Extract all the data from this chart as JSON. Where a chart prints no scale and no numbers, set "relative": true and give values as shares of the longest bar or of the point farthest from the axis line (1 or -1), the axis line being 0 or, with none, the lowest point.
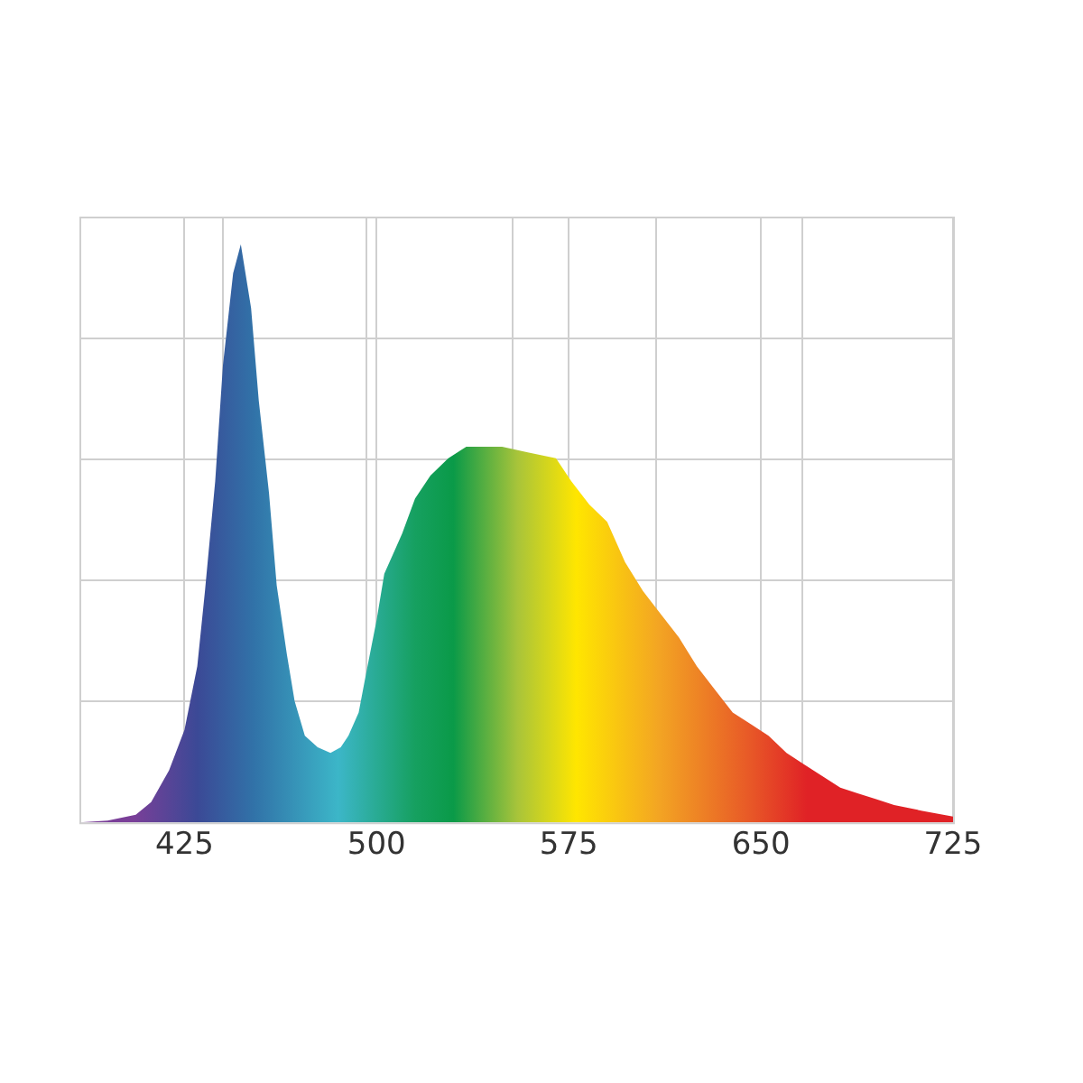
{
  "chart_data": {
    "type": "area",
    "relative": true,
    "grid": true,
    "x": [
      384,
      395,
      406,
      412,
      419,
      425,
      430,
      433,
      437,
      440,
      444,
      447,
      451,
      454,
      458,
      461,
      465,
      468,
      472,
      477,
      482,
      486,
      489,
      493,
      496,
      500,
      503,
      507,
      510,
      515,
      521,
      528,
      535,
      549,
      559,
      570,
      576,
      583,
      590,
      597,
      604,
      611,
      618,
      625,
      632,
      639,
      646,
      653,
      660,
      667,
      674,
      681,
      688,
      695,
      702,
      713,
      725
    ],
    "values": [
      0,
      0.003,
      0.013,
      0.035,
      0.09,
      0.16,
      0.27,
      0.4,
      0.59,
      0.79,
      0.95,
      1,
      0.89,
      0.73,
      0.57,
      0.41,
      0.29,
      0.21,
      0.15,
      0.13,
      0.12,
      0.13,
      0.15,
      0.19,
      0.26,
      0.35,
      0.43,
      0.47,
      0.5,
      0.56,
      0.6,
      0.63,
      0.65,
      0.65,
      0.64,
      0.63,
      0.59,
      0.55,
      0.52,
      0.45,
      0.4,
      0.36,
      0.32,
      0.27,
      0.23,
      0.19,
      0.17,
      0.15,
      0.12,
      0.1,
      0.08,
      0.06,
      0.05,
      0.04,
      0.03,
      0.02,
      0.01
    ],
    "xlim": [
      384,
      725
    ],
    "xticks": [
      425,
      {
        "value": 440,
        "label": null
      },
      {
        "value": 496,
        "label": null
      },
      500,
      {
        "value": 553,
        "label": null
      },
      575,
      {
        "value": 609,
        "label": null
      },
      650,
      {
        "value": 666,
        "label": null
      },
      725
    ]
  }
}
